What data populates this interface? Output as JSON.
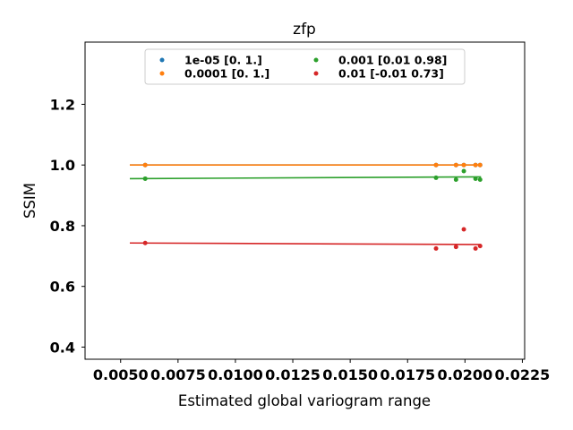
{
  "chart_data": {
    "type": "scatter",
    "title": "zfp",
    "xlabel": "Estimated global variogram range",
    "ylabel": "SSIM",
    "xlim": [
      0.00345,
      0.0226
    ],
    "ylim": [
      0.36,
      1.405
    ],
    "xticks": [
      0.005,
      0.0075,
      0.01,
      0.0125,
      0.015,
      0.0175,
      0.02,
      0.0225
    ],
    "xtick_labels": [
      "0.0050",
      "0.0075",
      "0.0100",
      "0.0125",
      "0.0150",
      "0.0175",
      "0.0200",
      "0.0225"
    ],
    "yticks": [
      0.4,
      0.6,
      0.8,
      1.0,
      1.2
    ],
    "ytick_labels": [
      "0.4",
      "0.6",
      "0.8",
      "1.0",
      "1.2"
    ],
    "grid": false,
    "legend_placement": "upper center",
    "series": [
      {
        "name": "1e-05 [0. 1.]",
        "color": "#1f77b4",
        "x": [
          0.00607,
          0.01874,
          0.01961,
          0.01995,
          0.02046,
          0.02066
        ],
        "y": [
          1.0,
          1.0,
          1.0,
          1.0,
          1.0,
          1.0
        ],
        "fit": [
          [
            0.0054,
            1.0
          ],
          [
            0.0207,
            1.0
          ]
        ]
      },
      {
        "name": "0.0001 [0. 1.]",
        "color": "#ff7f0e",
        "x": [
          0.00607,
          0.01874,
          0.01961,
          0.01995,
          0.02046,
          0.02066
        ],
        "y": [
          1.0,
          1.0,
          1.0,
          1.0,
          1.0,
          1.0
        ],
        "fit": [
          [
            0.0054,
            1.0
          ],
          [
            0.0207,
            1.0
          ]
        ]
      },
      {
        "name": "0.001 [0.01 0.98]",
        "color": "#2ca02c",
        "x": [
          0.00607,
          0.01874,
          0.01961,
          0.01995,
          0.02046,
          0.02066
        ],
        "y": [
          0.955,
          0.958,
          0.952,
          0.98,
          0.955,
          0.952
        ],
        "fit": [
          [
            0.0054,
            0.955
          ],
          [
            0.0207,
            0.961
          ]
        ]
      },
      {
        "name": "0.01 [-0.01  0.73]",
        "color": "#d62728",
        "x": [
          0.00607,
          0.01874,
          0.01961,
          0.01995,
          0.02046,
          0.02066
        ],
        "y": [
          0.743,
          0.725,
          0.73,
          0.788,
          0.725,
          0.733
        ],
        "fit": [
          [
            0.0054,
            0.743
          ],
          [
            0.0207,
            0.738
          ]
        ]
      }
    ]
  }
}
